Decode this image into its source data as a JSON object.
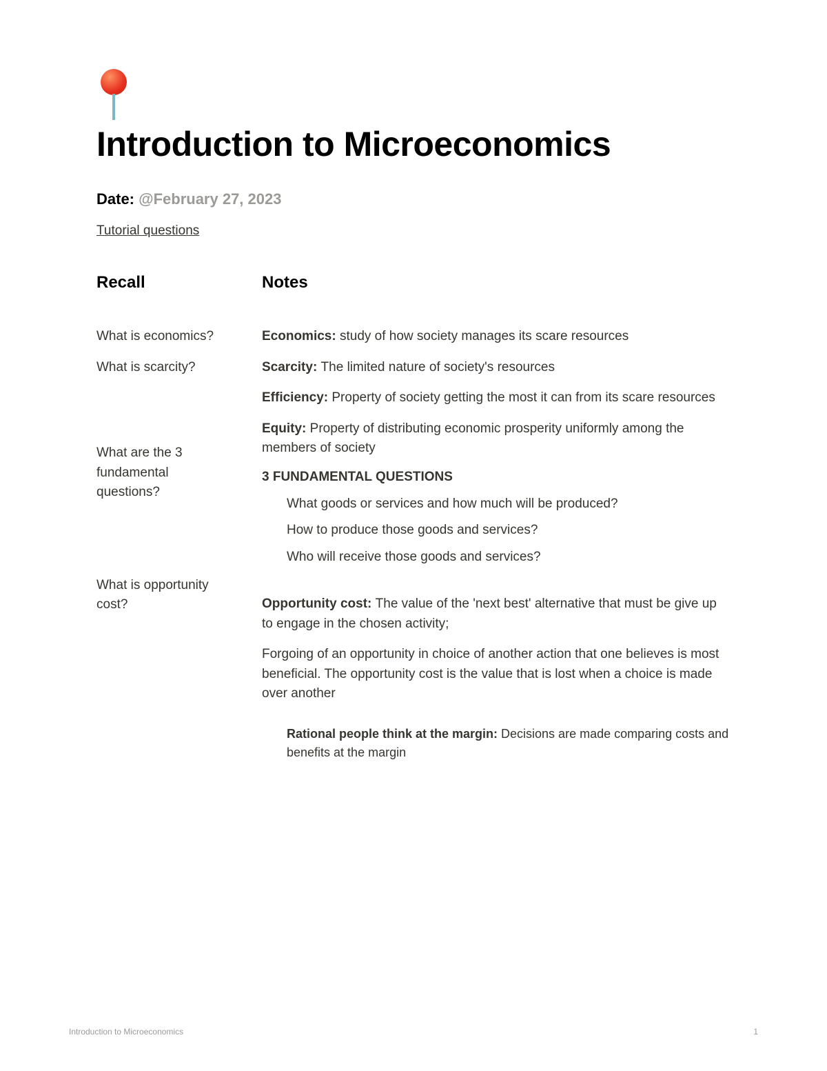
{
  "icon": "pushpin",
  "title": "Introduction to Microeconomics",
  "date_label": "Date: ",
  "date_value": "@February 27, 2023",
  "tutorial_link": "Tutorial questions",
  "columns": {
    "recall_header": "Recall",
    "notes_header": "Notes"
  },
  "recall": {
    "q1": "What is economics?",
    "q2": "What is scarcity?",
    "q3": "What are the 3 fundamental questions?",
    "q4": "What is opportunity cost?"
  },
  "notes": {
    "economics_term": "Economics: ",
    "economics_def": "study of how society manages its scare resources",
    "scarcity_term": "Scarcity: ",
    "scarcity_def": "The limited nature of society's resources",
    "efficiency_term": "Efficiency: ",
    "efficiency_def": "Property of society getting the most it can from its scare resources",
    "equity_term": "Equity: ",
    "equity_def": "Property of distributing economic prosperity uniformly among the members of society",
    "fundamental_title": "3 FUNDAMENTAL QUESTIONS",
    "fq1": "What goods or services and how much will be produced?",
    "fq2": "How to produce those goods and services?",
    "fq3": "Who will receive those goods and services?",
    "opportunity_term": "Opportunity cost: ",
    "opportunity_def": "The value of the 'next best' alternative that must be give up to engage in the chosen activity;",
    "opportunity_p2": "Forgoing of an opportunity in choice of another action that one believes is most beneficial. The opportunity cost is the value that is lost when a choice is made over another",
    "margin_term": "Rational people think at the margin: ",
    "margin_def": "Decisions are made comparing costs and benefits at the margin"
  },
  "footer": {
    "doc_title": "Introduction to Microeconomics",
    "page_num": "1"
  },
  "colors": {
    "text": "#37352f",
    "muted": "#9b9a97",
    "background": "#ffffff",
    "pin_red": "#e63020",
    "pin_needle": "#7ab8c4"
  }
}
